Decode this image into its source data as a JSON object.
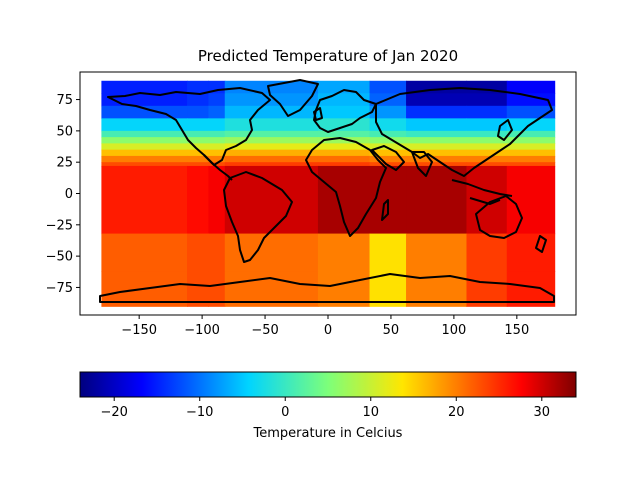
{
  "chart_data": {
    "type": "heatmap",
    "title": "Predicted Temperature of Jan 2020",
    "xlabel": "",
    "ylabel": "",
    "xlim": [
      -197,
      197
    ],
    "ylim": [
      -97,
      97
    ],
    "x_ticks": [
      -150,
      -100,
      -50,
      0,
      50,
      100,
      150
    ],
    "y_ticks": [
      -75,
      -50,
      -25,
      0,
      25,
      50,
      75
    ],
    "x_tick_labels": [
      "−150",
      "−100",
      "−50",
      "0",
      "50",
      "100",
      "150"
    ],
    "y_tick_labels": [
      "−75",
      "−50",
      "−25",
      "0",
      "25",
      "50",
      "75"
    ],
    "grid": false,
    "colormap": "jet",
    "colorbar": {
      "label": "Temperature in Celcius",
      "orientation": "horizontal",
      "range": [
        -24,
        34
      ],
      "ticks": [
        -20,
        -10,
        0,
        10,
        20,
        30
      ],
      "tick_labels": [
        "−20",
        "−10",
        "0",
        "10",
        "20",
        "30"
      ]
    },
    "lon_edges": [
      -180,
      -112,
      -95,
      -82,
      -8,
      33,
      62,
      110,
      142,
      180
    ],
    "lat_bands": [
      {
        "lat_min": 80,
        "lat_max": 90,
        "values": [
          -15,
          -14,
          -14,
          -9,
          -7,
          -12,
          -22,
          -22,
          -17
        ]
      },
      {
        "lat_min": 70,
        "lat_max": 80,
        "values": [
          -15,
          -14,
          -13,
          -8,
          -6,
          -11,
          -21,
          -21,
          -16
        ]
      },
      {
        "lat_min": 60,
        "lat_max": 70,
        "values": [
          -12,
          -12,
          -11,
          -6,
          -5,
          -8,
          -14,
          -14,
          -12
        ]
      },
      {
        "lat_min": 50,
        "lat_max": 60,
        "values": [
          -4,
          -4,
          -4,
          -2,
          -1,
          -3,
          -5,
          -5,
          -4
        ]
      },
      {
        "lat_min": 45,
        "lat_max": 50,
        "values": [
          1,
          1,
          1,
          2,
          2,
          1,
          0,
          0,
          1
        ]
      },
      {
        "lat_min": 40,
        "lat_max": 45,
        "values": [
          6,
          6,
          6,
          7,
          7,
          6,
          6,
          6,
          6
        ]
      },
      {
        "lat_min": 35,
        "lat_max": 40,
        "values": [
          11,
          11,
          11,
          12,
          12,
          11,
          11,
          11,
          11
        ]
      },
      {
        "lat_min": 30,
        "lat_max": 35,
        "values": [
          16,
          16,
          16,
          17,
          17,
          16,
          16,
          16,
          16
        ]
      },
      {
        "lat_min": 25,
        "lat_max": 30,
        "values": [
          20,
          20,
          20,
          21,
          21,
          20,
          20,
          20,
          20
        ]
      },
      {
        "lat_min": 22,
        "lat_max": 25,
        "values": [
          23,
          23,
          23,
          24,
          24,
          23,
          23,
          23,
          23
        ]
      },
      {
        "lat_min": -32,
        "lat_max": 22,
        "values": [
          26,
          27,
          28,
          30,
          32,
          32,
          32,
          30,
          28
        ]
      },
      {
        "lat_min": -62,
        "lat_max": -32,
        "values": [
          22,
          23,
          23,
          21,
          20,
          14,
          20,
          24,
          26
        ]
      },
      {
        "lat_min": -90,
        "lat_max": -62,
        "values": [
          22,
          23,
          23,
          21,
          20,
          14,
          20,
          24,
          26
        ]
      }
    ]
  }
}
